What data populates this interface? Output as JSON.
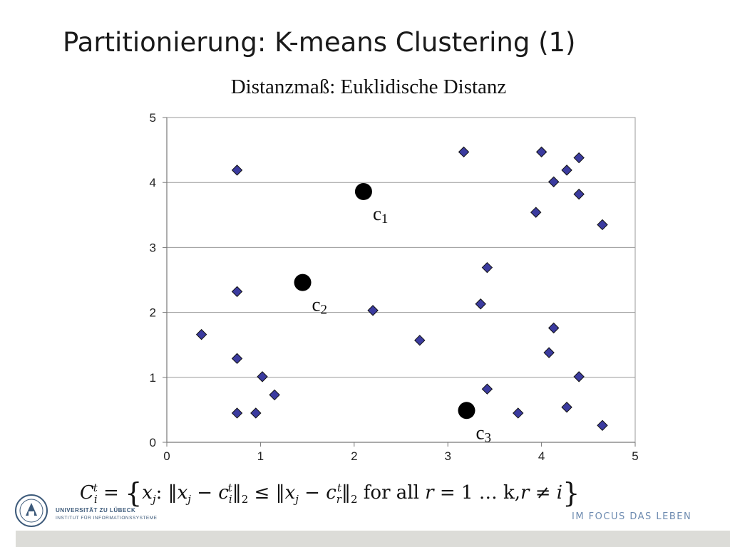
{
  "slide": {
    "title": "Partitionierung: K-means Clustering (1)",
    "formula": {
      "lhs": "C",
      "lhs_sub": "i",
      "lhs_sup": "t",
      "x": "x",
      "x_sub": "j",
      "c": "c",
      "c_sub_i": "i",
      "c_sub_r": "r",
      "c_sup": "t",
      "norm_sub": "2",
      "text_for_all": "for all",
      "r": "r",
      "range": "1 … k",
      "i": "i",
      "eq": "=",
      "leq": "≤",
      "neq": "≠",
      "minus": "−",
      "colon": ":",
      "comma": ","
    },
    "footer": {
      "university": "UNIVERSITÄT ZU LÜBECK",
      "institute": "INSTITUT FÜR INFORMATIONSSYSTEME",
      "slogan": "IM FOCUS DAS LEBEN"
    }
  },
  "chart_data": {
    "type": "scatter",
    "title": "Distanzmaß: Euklidische Distanz",
    "xlim": [
      0,
      5
    ],
    "ylim": [
      0,
      5
    ],
    "xticks": [
      0,
      1,
      2,
      3,
      4,
      5
    ],
    "yticks": [
      0,
      1,
      2,
      3,
      4,
      5
    ],
    "grid": "horizontal",
    "points": [
      [
        0.37,
        1.66
      ],
      [
        0.75,
        4.19
      ],
      [
        0.75,
        2.32
      ],
      [
        0.75,
        1.29
      ],
      [
        0.75,
        0.45
      ],
      [
        0.95,
        0.45
      ],
      [
        1.02,
        1.01
      ],
      [
        1.15,
        0.73
      ],
      [
        2.2,
        2.03
      ],
      [
        2.7,
        1.57
      ],
      [
        3.17,
        4.47
      ],
      [
        3.35,
        2.13
      ],
      [
        3.42,
        2.69
      ],
      [
        3.42,
        0.82
      ],
      [
        3.75,
        0.45
      ],
      [
        3.94,
        3.54
      ],
      [
        4.0,
        4.47
      ],
      [
        4.08,
        1.38
      ],
      [
        4.13,
        4.01
      ],
      [
        4.13,
        1.76
      ],
      [
        4.27,
        4.19
      ],
      [
        4.27,
        0.54
      ],
      [
        4.4,
        4.38
      ],
      [
        4.4,
        3.82
      ],
      [
        4.4,
        1.01
      ],
      [
        4.65,
        3.35
      ],
      [
        4.65,
        0.26
      ]
    ],
    "point_color": "#3b3b9f",
    "centroids": [
      {
        "x": 2.1,
        "y": 3.86,
        "label": "c",
        "sub": "1"
      },
      {
        "x": 1.45,
        "y": 2.46,
        "label": "c",
        "sub": "2"
      },
      {
        "x": 3.2,
        "y": 0.49,
        "label": "c",
        "sub": "3"
      }
    ]
  }
}
